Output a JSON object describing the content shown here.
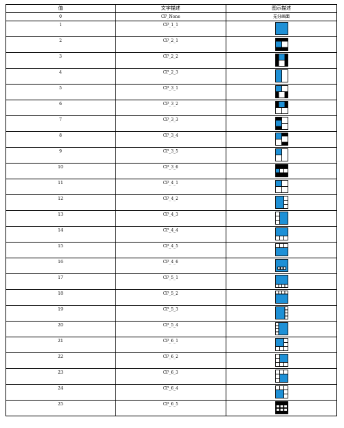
{
  "table": {
    "headers": {
      "value": "值",
      "text": "文字描述",
      "icon": "图示描述"
    },
    "row_zero": {
      "value": "0",
      "text": "CP_None",
      "icon_text": "无分画面"
    },
    "rows": [
      {
        "value": "1",
        "text": "CP_1_1",
        "icon": "cp-1-1"
      },
      {
        "value": "2",
        "text": "CP_2_1",
        "icon": "cp-2-1"
      },
      {
        "value": "3",
        "text": "CP_2_2",
        "icon": "cp-2-2"
      },
      {
        "value": "4",
        "text": "CP_2_3",
        "icon": "cp-2-3"
      },
      {
        "value": "5",
        "text": "CP_3_1",
        "icon": "cp-3-1"
      },
      {
        "value": "6",
        "text": "CP_3_2",
        "icon": "cp-3-2"
      },
      {
        "value": "7",
        "text": "CP_3_3",
        "icon": "cp-3-3"
      },
      {
        "value": "8",
        "text": "CP_3_4",
        "icon": "cp-3-4"
      },
      {
        "value": "9",
        "text": "CP_3_5",
        "icon": "cp-3-5"
      },
      {
        "value": "10",
        "text": "CP_3_6",
        "icon": "cp-3-6"
      },
      {
        "value": "11",
        "text": "CP_4_1",
        "icon": "cp-4-1"
      },
      {
        "value": "12",
        "text": "CP_4_2",
        "icon": "cp-4-2"
      },
      {
        "value": "13",
        "text": "CP_4_3",
        "icon": "cp-4-3"
      },
      {
        "value": "14",
        "text": "CP_4_4",
        "icon": "cp-4-4"
      },
      {
        "value": "15",
        "text": "CP_4_5",
        "icon": "cp-4-5"
      },
      {
        "value": "16",
        "text": "CP_4_6",
        "icon": "cp-4-6"
      },
      {
        "value": "17",
        "text": "CP_5_1",
        "icon": "cp-5-1"
      },
      {
        "value": "18",
        "text": "CP_5_2",
        "icon": "cp-5-2"
      },
      {
        "value": "19",
        "text": "CP_5_3",
        "icon": "cp-5-3"
      },
      {
        "value": "20",
        "text": "CP_5_4",
        "icon": "cp-5-4"
      },
      {
        "value": "21",
        "text": "CP_6_1",
        "icon": "cp-6-1"
      },
      {
        "value": "22",
        "text": "CP_6_2",
        "icon": "cp-6-2"
      },
      {
        "value": "23",
        "text": "CP_6_3",
        "icon": "cp-6-3"
      },
      {
        "value": "24",
        "text": "CP_6_4",
        "icon": "cp-6-4"
      },
      {
        "value": "25",
        "text": "CP_6_5",
        "icon": "cp-6-5"
      }
    ]
  },
  "colors": {
    "main_window": "#1e90d6",
    "frame": "#000000",
    "sub_window": "#ffffff"
  }
}
